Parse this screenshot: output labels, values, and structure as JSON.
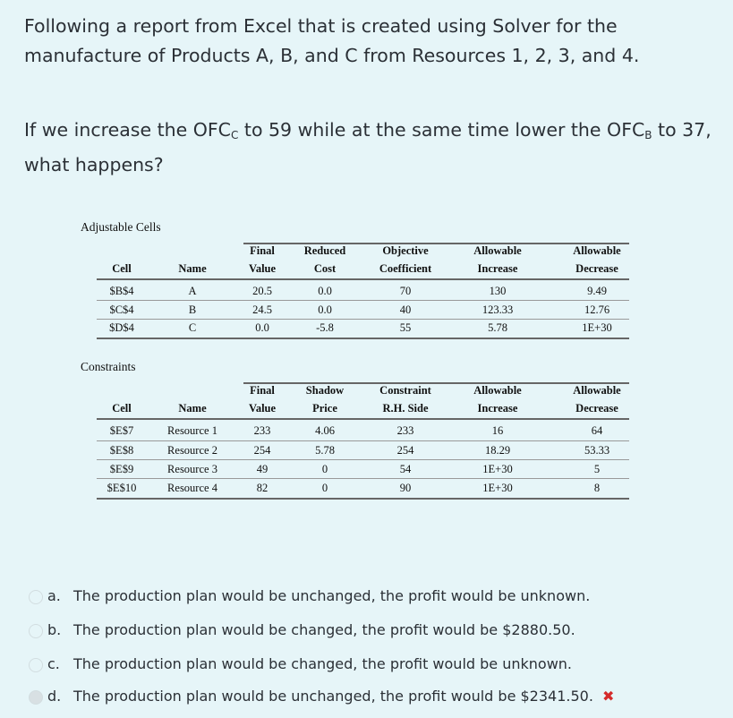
{
  "intro": "Following a report from Excel that is created using Solver for the manufacture of Products A, B, and C from Resources 1, 2, 3, and 4.",
  "question": {
    "part1": "If we increase the OFC",
    "sub1": "C",
    "part2": " to 59 while at the same time lower the OFC",
    "sub2": "B",
    "part3": " to 37, what happens?"
  },
  "adjustable": {
    "title": "Adjustable Cells",
    "headers_top": [
      "Final",
      "Reduced",
      "Objective",
      "Allowable",
      "Allowable"
    ],
    "headers_bottom": [
      "Cell",
      "Name",
      "Value",
      "Cost",
      "Coefficient",
      "Increase",
      "Decrease"
    ],
    "rows": [
      [
        "$B$4",
        "A",
        "20.5",
        "0.0",
        "70",
        "130",
        "9.49"
      ],
      [
        "$C$4",
        "B",
        "24.5",
        "0.0",
        "40",
        "123.33",
        "12.76"
      ],
      [
        "$D$4",
        "C",
        "0.0",
        "-5.8",
        "55",
        "5.78",
        "1E+30"
      ]
    ]
  },
  "constraints": {
    "title": "Constraints",
    "headers_top": [
      "Final",
      "Shadow",
      "Constraint",
      "Allowable",
      "Allowable"
    ],
    "headers_bottom": [
      "Cell",
      "Name",
      "Value",
      "Price",
      "R.H. Side",
      "Increase",
      "Decrease"
    ],
    "rows": [
      [
        "$E$7",
        "Resource 1",
        "233",
        "4.06",
        "233",
        "16",
        "64"
      ],
      [
        "$E$8",
        "Resource 2",
        "254",
        "5.78",
        "254",
        "18.29",
        "53.33"
      ],
      [
        "$E$9",
        "Resource 3",
        "49",
        "0",
        "54",
        "1E+30",
        "5"
      ],
      [
        "$E$10",
        "Resource 4",
        "82",
        "0",
        "90",
        "1E+30",
        "8"
      ]
    ]
  },
  "options": [
    {
      "letter": "a.",
      "text": "The production plan would be unchanged, the profit would be unknown.",
      "selected": false
    },
    {
      "letter": "b.",
      "text": "The production plan would be changed, the profit would be $2880.50.",
      "selected": false
    },
    {
      "letter": "c.",
      "text": "The production plan would be changed, the profit would be unknown.",
      "selected": false
    },
    {
      "letter": "d.",
      "text": "The production plan would be unchanged, the profit would be $2341.50.",
      "selected": true
    }
  ],
  "wrong_mark": "✖",
  "colors": {
    "background": "#e6f5f8",
    "wrong": "#d42b2b"
  }
}
